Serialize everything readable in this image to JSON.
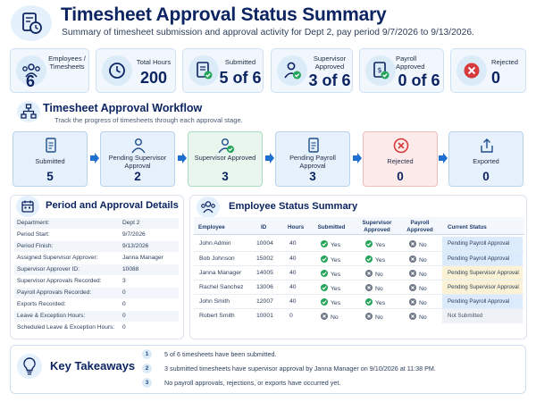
{
  "header": {
    "title": "Timesheet Approval Status Summary",
    "subtitle": "Summary of timesheet submission and approval activity for Dept 2, pay period 9/7/2026 to 9/13/2026."
  },
  "kpis": [
    {
      "label": "Employees / Timesheets",
      "value": "6",
      "icon": "people-icon"
    },
    {
      "label": "Total Hours",
      "value": "200",
      "icon": "clock-icon"
    },
    {
      "label": "Submitted",
      "value": "5 of 6",
      "icon": "document-check-icon"
    },
    {
      "label": "Supervisor Approved",
      "value": "3 of 6",
      "icon": "person-check-icon"
    },
    {
      "label": "Payroll Approved",
      "value": "0 of 6",
      "icon": "payroll-document-icon"
    },
    {
      "label": "Rejected",
      "value": "0",
      "icon": "rejected-icon"
    }
  ],
  "workflow": {
    "title": "Timesheet Approval Workflow",
    "subtitle": "Track the progress of timesheets through each approval stage.",
    "stages": [
      {
        "label": "Submitted",
        "value": "5"
      },
      {
        "label": "Pending Supervisor Approval",
        "value": "2"
      },
      {
        "label": "Supervisor Approved",
        "value": "3"
      },
      {
        "label": "Pending Payroll Approval",
        "value": "3"
      },
      {
        "label": "Rejected",
        "value": "0"
      },
      {
        "label": "Exported",
        "value": "0"
      }
    ]
  },
  "period": {
    "title": "Period and Approval Details",
    "rows": [
      {
        "k": "Department:",
        "v": "Dept 2"
      },
      {
        "k": "Period Start:",
        "v": "9/7/2026"
      },
      {
        "k": "Period Finish:",
        "v": "9/13/2026"
      },
      {
        "k": "Assigned Supervisor Approver:",
        "v": "Janna Manager"
      },
      {
        "k": "Supervisor Approver ID:",
        "v": "10088"
      },
      {
        "k": "Supervisor Approvals Recorded:",
        "v": "3"
      },
      {
        "k": "Payroll Approvals Recorded:",
        "v": "0"
      },
      {
        "k": "Exports Recorded:",
        "v": "0"
      },
      {
        "k": "Leave & Exception Hours:",
        "v": "0"
      },
      {
        "k": "Scheduled Leave & Exception Hours:",
        "v": "0"
      }
    ]
  },
  "employees": {
    "title": "Employee Status Summary",
    "headers": {
      "employee": "Employee",
      "id": "ID",
      "hours": "Hours",
      "submitted": "Submitted",
      "supervisor": "Supervisor Approved",
      "payroll": "Payroll Approved",
      "status": "Current Status"
    },
    "yes": "Yes",
    "no": "No",
    "rows": [
      {
        "name": "John Admin",
        "id": "10004",
        "hours": "40",
        "submitted": "Yes",
        "supervisor": "Yes",
        "payroll": "No",
        "status": "Pending Payroll Approval"
      },
      {
        "name": "Bob Johnson",
        "id": "15002",
        "hours": "40",
        "submitted": "Yes",
        "supervisor": "Yes",
        "payroll": "No",
        "status": "Pending Payroll Approval"
      },
      {
        "name": "Janna Manager",
        "id": "14005",
        "hours": "40",
        "submitted": "Yes",
        "supervisor": "No",
        "payroll": "No",
        "status": "Pending Supervisor Approval"
      },
      {
        "name": "Rachel Sanchez",
        "id": "13006",
        "hours": "40",
        "submitted": "Yes",
        "supervisor": "No",
        "payroll": "No",
        "status": "Pending Supervisor Approval"
      },
      {
        "name": "John Smith",
        "id": "12007",
        "hours": "40",
        "submitted": "Yes",
        "supervisor": "Yes",
        "payroll": "No",
        "status": "Pending Payroll Approval"
      },
      {
        "name": "Robert Smith",
        "id": "10001",
        "hours": "0",
        "submitted": "No",
        "supervisor": "No",
        "payroll": "No",
        "status": "Not Submitted"
      }
    ]
  },
  "takeaways": {
    "title": "Key Takeaways",
    "items": [
      {
        "n": "1",
        "text": "5 of 6 timesheets have been submitted."
      },
      {
        "n": "2",
        "text": "3 submitted timesheets have supervisor approval by Janna Manager on 9/10/2026 at 11:38 PM."
      },
      {
        "n": "3",
        "text": "No payroll approvals, rejections, or exports have occurred yet."
      }
    ]
  },
  "colors": {
    "navy": "#0c2461",
    "accent_blue": "#1f6fd1",
    "yes_green": "#23a55a",
    "no_gray": "#6e7786",
    "reject_red": "#d63a3a",
    "payroll_status_bg": "#dcebfb",
    "supervisor_status_bg": "#fbf1d4"
  }
}
